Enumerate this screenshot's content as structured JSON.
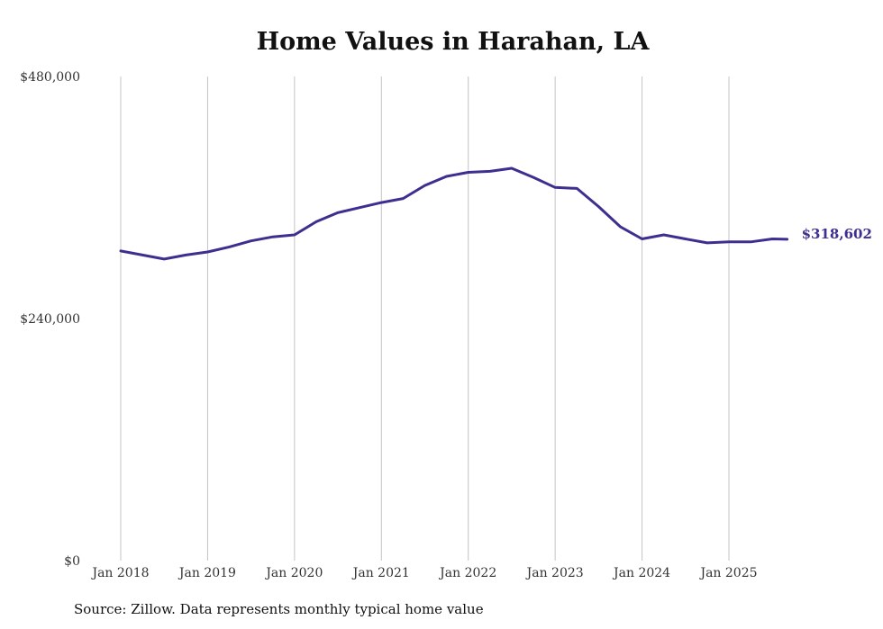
{
  "chart_data": {
    "type": "line",
    "title": "Home Values in Harahan, LA",
    "xlabel": "",
    "ylabel": "",
    "ylim": [
      0,
      480000
    ],
    "yticks": [
      0,
      240000,
      480000
    ],
    "ytick_labels": [
      "$0",
      "$240,000",
      "$480,000"
    ],
    "xticks": [
      2018,
      2019,
      2020,
      2021,
      2022,
      2023,
      2024,
      2025
    ],
    "xtick_labels": [
      "Jan 2018",
      "Jan 2019",
      "Jan 2020",
      "Jan 2021",
      "Jan 2022",
      "Jan 2023",
      "Jan 2024",
      "Jan 2025"
    ],
    "grid": "vertical",
    "series": [
      {
        "name": "Typical home value",
        "color": "#3d2f8f",
        "x": [
          2018.0,
          2018.25,
          2018.5,
          2018.75,
          2019.0,
          2019.25,
          2019.5,
          2019.75,
          2020.0,
          2020.25,
          2020.5,
          2020.75,
          2021.0,
          2021.25,
          2021.5,
          2021.75,
          2022.0,
          2022.25,
          2022.5,
          2022.75,
          2023.0,
          2023.25,
          2023.5,
          2023.75,
          2024.0,
          2024.25,
          2024.5,
          2024.75,
          2025.0,
          2025.25,
          2025.5,
          2025.67
        ],
        "values": [
          307000,
          303000,
          299000,
          303000,
          306000,
          311000,
          317000,
          321000,
          323000,
          336000,
          345000,
          350000,
          355000,
          359000,
          372000,
          381000,
          385000,
          386000,
          389000,
          380000,
          370000,
          369000,
          351000,
          331000,
          319000,
          323000,
          319000,
          315000,
          316000,
          316000,
          319000,
          318602
        ]
      }
    ],
    "end_label": "$318,602"
  },
  "source": "Source: Zillow. Data represents monthly typical home value"
}
